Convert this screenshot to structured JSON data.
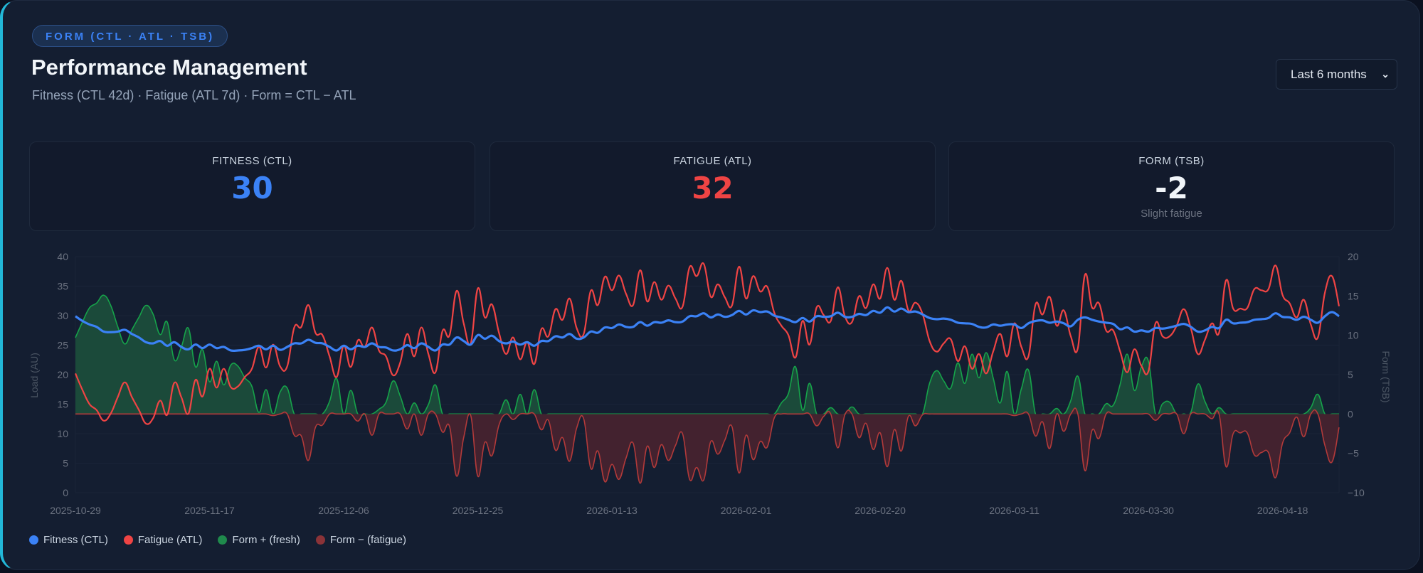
{
  "header": {
    "badge": "FORM (CTL · ATL · TSB)",
    "title": "Performance Management",
    "subtitle": "Fitness (CTL 42d) · Fatigue (ATL 7d) · Form = CTL − ATL",
    "range_select": {
      "value": "Last 6 months",
      "icon": "chevron-down-icon"
    }
  },
  "stats": [
    {
      "label": "FITNESS (CTL)",
      "value": "30",
      "color": "#3b82f6"
    },
    {
      "label": "FATIGUE (ATL)",
      "value": "32",
      "color": "#ef4444"
    },
    {
      "label": "FORM (TSB)",
      "value": "-2",
      "color": "#f1f5f9",
      "note": "Slight fatigue"
    }
  ],
  "chart_data": {
    "type": "line",
    "x_start": "2025-10-29",
    "x_end": "2026-04-26",
    "x_step": "1 day",
    "x_tick_labels": [
      "2025-10-29",
      "2025-11-17",
      "2025-12-06",
      "2025-12-25",
      "2026-01-13",
      "2026-02-01",
      "2026-02-20",
      "2026-03-11",
      "2026-03-30",
      "2026-04-18"
    ],
    "ylabel": "Load (AU)",
    "ylim": [
      0,
      40
    ],
    "y_ticks": [
      0,
      5,
      10,
      15,
      20,
      25,
      30,
      35,
      40
    ],
    "y2label": "Form (TSB)",
    "y2lim": [
      -10,
      20
    ],
    "y2_ticks": [
      -10,
      -5,
      0,
      5,
      10,
      15,
      20
    ],
    "grid": true,
    "legend_position": "bottom-left",
    "series": [
      {
        "name": "Fitness (CTL)",
        "axis": "left",
        "color": "#3b82f6",
        "values": [
          29.9,
          29.1,
          28.5,
          28.1,
          27.3,
          27.2,
          27.3,
          27.6,
          26.9,
          26.3,
          25.5,
          25.3,
          25.7,
          24.9,
          25.5,
          24.7,
          24.3,
          25.1,
          24.5,
          25.1,
          24.5,
          24.7,
          24.1,
          24.1,
          24.2,
          24.5,
          24.9,
          24.3,
          24.9,
          24.2,
          24.7,
          25.3,
          25.3,
          25.9,
          25.4,
          25.3,
          24.7,
          24.1,
          24.9,
          24.3,
          24.9,
          24.7,
          25.3,
          24.7,
          24.6,
          24.1,
          24.3,
          25.0,
          24.5,
          25.3,
          24.7,
          24.1,
          25.1,
          25.1,
          26.3,
          25.7,
          25.1,
          26.7,
          26.1,
          26.6,
          25.7,
          25.3,
          25.6,
          25.1,
          25.5,
          24.9,
          25.7,
          25.7,
          26.5,
          26.3,
          26.9,
          26.1,
          26.3,
          27.3,
          27.1,
          28.0,
          27.9,
          28.5,
          28.1,
          28.1,
          28.9,
          28.3,
          28.9,
          28.8,
          29.2,
          28.9,
          29.0,
          29.9,
          29.9,
          30.4,
          29.7,
          30.2,
          29.8,
          30.1,
          30.8,
          30.2,
          30.9,
          30.6,
          30.7,
          30.0,
          29.7,
          29.3,
          28.9,
          29.6,
          29.0,
          29.9,
          29.8,
          29.9,
          30.5,
          29.8,
          29.8,
          30.3,
          30.1,
          30.8,
          30.5,
          31.4,
          30.7,
          31.2,
          30.6,
          30.7,
          30.2,
          29.6,
          29.4,
          29.5,
          29.3,
          28.8,
          28.7,
          28.6,
          28.1,
          28.0,
          28.5,
          28.3,
          28.5,
          28.5,
          27.9,
          28.7,
          29.1,
          29.2,
          28.8,
          29.0,
          28.7,
          28.2,
          29.3,
          29.7,
          29.3,
          29.0,
          28.8,
          28.6,
          27.7,
          28.0,
          27.3,
          27.5,
          27.3,
          27.9,
          27.8,
          28.0,
          28.3,
          28.6,
          28.1,
          27.3,
          27.5,
          28.1,
          27.9,
          29.3,
          28.7,
          28.8,
          28.9,
          29.3,
          29.4,
          29.6,
          30.4,
          29.8,
          29.7,
          29.3,
          29.8,
          29.3,
          28.8,
          29.9,
          30.6,
          29.9
        ]
      },
      {
        "name": "Fatigue (ATL)",
        "axis": "left",
        "color": "#ef4444",
        "values": [
          20.2,
          17.4,
          15.0,
          14.0,
          12.2,
          13.4,
          16.2,
          18.7,
          16.2,
          14.0,
          11.7,
          12.6,
          15.6,
          13.2,
          18.6,
          16.2,
          13.4,
          19.1,
          16.3,
          21.0,
          17.8,
          21.0,
          17.9,
          18.0,
          19.6,
          21.0,
          24.7,
          21.2,
          25.1,
          21.4,
          21.4,
          28.0,
          28.1,
          31.8,
          27.1,
          26.7,
          23.1,
          19.6,
          24.9,
          21.3,
          25.8,
          24.7,
          28.0,
          24.1,
          23.1,
          19.9,
          22.0,
          26.9,
          23.1,
          28.0,
          23.5,
          20.4,
          27.4,
          26.7,
          34.2,
          28.7,
          25.3,
          34.6,
          29.7,
          31.9,
          27.1,
          23.5,
          26.3,
          22.6,
          25.5,
          21.8,
          27.7,
          26.5,
          31.1,
          29.3,
          32.9,
          27.9,
          26.9,
          34.2,
          31.8,
          36.6,
          34.3,
          36.8,
          33.7,
          31.8,
          37.7,
          32.4,
          35.7,
          32.7,
          35.1,
          32.9,
          31.5,
          38.2,
          36.7,
          38.8,
          33.2,
          35.3,
          33.1,
          31.7,
          38.3,
          32.9,
          36.7,
          34.1,
          34.9,
          30.5,
          28.3,
          26.7,
          22.9,
          29.1,
          25.1,
          31.4,
          30.1,
          29.1,
          34.8,
          29.9,
          28.9,
          33.3,
          31.3,
          35.3,
          32.9,
          38.1,
          32.7,
          35.9,
          30.9,
          32.2,
          30.3,
          25.7,
          23.9,
          25.3,
          26.0,
          22.3,
          24.8,
          21.0,
          23.5,
          20.2,
          23.9,
          26.9,
          23.1,
          28.7,
          24.7,
          23.1,
          31.9,
          30.2,
          33.2,
          28.3,
          30.9,
          26.5,
          24.5,
          36.9,
          31.4,
          32.1,
          27.5,
          27.5,
          23.9,
          20.4,
          24.3,
          21.5,
          20.6,
          28.7,
          26.5,
          26.5,
          28.3,
          31.1,
          27.9,
          23.5,
          25.9,
          28.7,
          27.1,
          36.0,
          31.2,
          31.2,
          31.3,
          34.5,
          34.3,
          34.5,
          38.5,
          33.5,
          32.1,
          29.7,
          32.7,
          28.5,
          26.3,
          33.9,
          36.7,
          31.6
        ]
      },
      {
        "name": "Form + (fresh)",
        "axis": "right",
        "color": "#16a34a",
        "fill": "#1b4a3a",
        "source": "form",
        "sign": "positive"
      },
      {
        "name": "Form − (fatigue)",
        "axis": "right",
        "color": "#b23a3a",
        "fill": "#43222f",
        "source": "form",
        "sign": "negative"
      }
    ],
    "form": [
      9.7,
      11.7,
      13.5,
      14.1,
      15.1,
      13.8,
      11.1,
      8.9,
      10.7,
      12.3,
      13.8,
      12.7,
      10.1,
      11.7,
      6.9,
      8.5,
      10.9,
      6.0,
      8.2,
      4.1,
      6.7,
      3.7,
      6.2,
      6.1,
      4.6,
      3.5,
      0.2,
      3.1,
      -0.2,
      2.8,
      3.3,
      -2.7,
      -2.8,
      -5.9,
      -1.7,
      -1.4,
      1.6,
      4.5,
      0.0,
      3.0,
      -0.9,
      0.0,
      -2.7,
      0.6,
      1.5,
      4.2,
      2.3,
      -1.9,
      1.4,
      -2.7,
      1.2,
      3.7,
      -2.3,
      -1.6,
      -7.9,
      -3.0,
      -0.2,
      -7.9,
      -3.6,
      -5.3,
      -1.4,
      1.8,
      -0.7,
      2.5,
      0.0,
      3.1,
      -2.0,
      -0.8,
      -4.6,
      -3.0,
      -6.0,
      -1.8,
      -0.6,
      -6.9,
      -4.7,
      -8.6,
      -6.4,
      -8.3,
      -5.6,
      -3.7,
      -8.8,
      -4.1,
      -6.8,
      -3.9,
      -5.9,
      -4.0,
      -2.5,
      -8.3,
      -6.8,
      -8.4,
      -3.5,
      -5.1,
      -3.3,
      -1.6,
      -7.5,
      -2.7,
      -5.8,
      -3.5,
      -4.2,
      -0.5,
      1.4,
      2.6,
      6.0,
      0.5,
      3.9,
      -1.5,
      -0.3,
      0.8,
      -4.3,
      -0.1,
      0.9,
      -3.0,
      -1.2,
      -4.5,
      -2.4,
      -6.7,
      -2.0,
      -4.7,
      -0.3,
      -1.5,
      -0.1,
      3.9,
      5.5,
      4.2,
      3.3,
      6.5,
      3.9,
      7.6,
      4.6,
      7.8,
      4.6,
      1.4,
      5.4,
      -0.2,
      3.2,
      5.6,
      -2.8,
      -1.0,
      -4.4,
      0.7,
      -2.2,
      1.7,
      4.8,
      -7.2,
      -2.1,
      -3.1,
      1.3,
      1.1,
      3.8,
      7.6,
      3.0,
      6.0,
      6.7,
      -0.8,
      1.3,
      1.5,
      0.0,
      -2.5,
      0.2,
      3.8,
      1.6,
      -0.6,
      0.8,
      -6.7,
      -2.5,
      -2.4,
      -2.4,
      -5.2,
      -4.9,
      -4.9,
      -8.1,
      -3.7,
      -2.4,
      -0.4,
      -2.9,
      0.8,
      2.5,
      -4.0,
      -6.1,
      -1.7
    ]
  }
}
